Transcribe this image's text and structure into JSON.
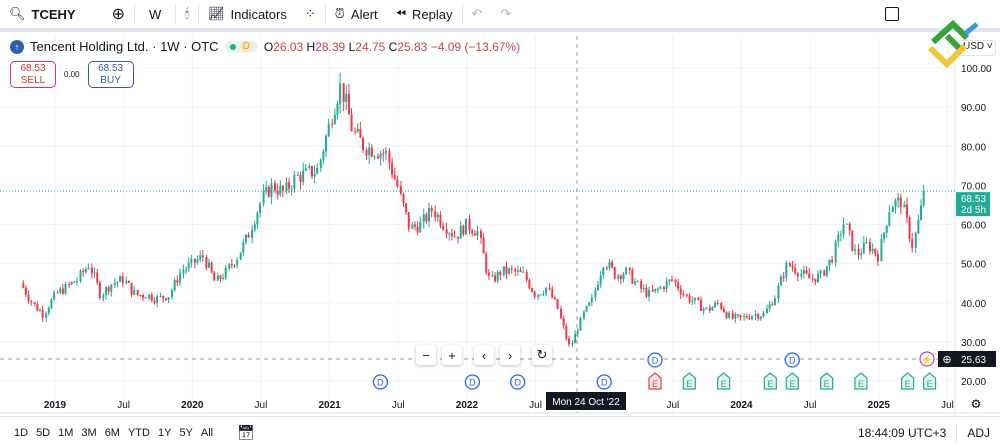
{
  "toolbar": {
    "symbol": "TCEHY",
    "interval": "W",
    "indicators": "Indicators",
    "alert": "Alert",
    "replay": "Replay"
  },
  "legend": {
    "name": "Tencent Holding Ltd. · 1W · OTC",
    "badge": "D",
    "open_label": "O",
    "open": "26.03",
    "high_label": "H",
    "high": "28.39",
    "low_label": "L",
    "low": "24.75",
    "close_label": "C",
    "close": "25.83",
    "change": "−4.09 (−13.67%)"
  },
  "trade": {
    "sell_price": "68.53",
    "sell_label": "SELL",
    "spread": "0.00",
    "buy_price": "68.53",
    "buy_label": "BUY"
  },
  "currency": "USD",
  "price_axis": {
    "last_price": "68.53",
    "countdown": "2d 5h",
    "crosshair_price": "25.63"
  },
  "crosshair_date": "Mon 24 Oct '22",
  "colors": {
    "up": "#22ab94",
    "down": "#f23645",
    "accent": "#2962ff"
  },
  "time_ranges": [
    "1D",
    "5D",
    "1M",
    "3M",
    "6M",
    "YTD",
    "1Y",
    "5Y",
    "All"
  ],
  "clock": "18:44:09 UTC+3",
  "adj": "ADJ",
  "chart_data": {
    "type": "candlestick",
    "ylim": [
      17,
      104
    ],
    "y_ticks": [
      "100.00",
      "90.00",
      "80.00",
      "70.00",
      "60.00",
      "50.00",
      "40.00",
      "30.00",
      "20.00"
    ],
    "x_ticks": [
      {
        "label": "2019",
        "t": 2019.0
      },
      {
        "label": "Jul",
        "t": 2019.5
      },
      {
        "label": "2020",
        "t": 2020.0
      },
      {
        "label": "Jul",
        "t": 2020.5
      },
      {
        "label": "2021",
        "t": 2021.0
      },
      {
        "label": "Jul",
        "t": 2021.5
      },
      {
        "label": "2022",
        "t": 2022.0
      },
      {
        "label": "Jul",
        "t": 2022.5
      },
      {
        "label": "Jul",
        "t": 2023.5
      },
      {
        "label": "2024",
        "t": 2024.0
      },
      {
        "label": "Jul",
        "t": 2024.5
      },
      {
        "label": "2025",
        "t": 2025.0
      },
      {
        "label": "Jul",
        "t": 2025.5
      }
    ],
    "monthly_close": {
      "start": "2018-10",
      "values": [
        45,
        40,
        37,
        42,
        44,
        46,
        50,
        42,
        45,
        46,
        42,
        42,
        41,
        42,
        48,
        50,
        52,
        45,
        48,
        52,
        58,
        66,
        70,
        68,
        72,
        73,
        74,
        86,
        96,
        84,
        80,
        79,
        78,
        69,
        59,
        60,
        64,
        60,
        57,
        60,
        58,
        45,
        48,
        48,
        47,
        42,
        44,
        38,
        28,
        36,
        41,
        51,
        47,
        48,
        44,
        42,
        44,
        46,
        42,
        40,
        38,
        40,
        36,
        36,
        37,
        37,
        42,
        50,
        48,
        46,
        47,
        52,
        61,
        52,
        55,
        52,
        65,
        66,
        54,
        68.53
      ]
    },
    "events": [
      {
        "type": "D",
        "t": 2021.37,
        "row": 2
      },
      {
        "type": "D",
        "t": 2022.04,
        "row": 2
      },
      {
        "type": "D",
        "t": 2022.37,
        "row": 2
      },
      {
        "type": "D",
        "t": 2023.0,
        "row": 2
      },
      {
        "type": "D",
        "t": 2023.37,
        "row": 1
      },
      {
        "type": "E",
        "t": 2023.37,
        "row": 2
      },
      {
        "type": "E",
        "t": 2023.62,
        "row": 2
      },
      {
        "type": "E",
        "t": 2023.87,
        "row": 2
      },
      {
        "type": "E",
        "t": 2024.21,
        "row": 2
      },
      {
        "type": "D",
        "t": 2024.37,
        "row": 1
      },
      {
        "type": "E",
        "t": 2024.37,
        "row": 2
      },
      {
        "type": "E",
        "t": 2024.62,
        "row": 2
      },
      {
        "type": "E",
        "t": 2024.87,
        "row": 2
      },
      {
        "type": "E",
        "t": 2025.21,
        "row": 2
      },
      {
        "type": "E",
        "t": 2025.37,
        "row": 2
      }
    ]
  }
}
